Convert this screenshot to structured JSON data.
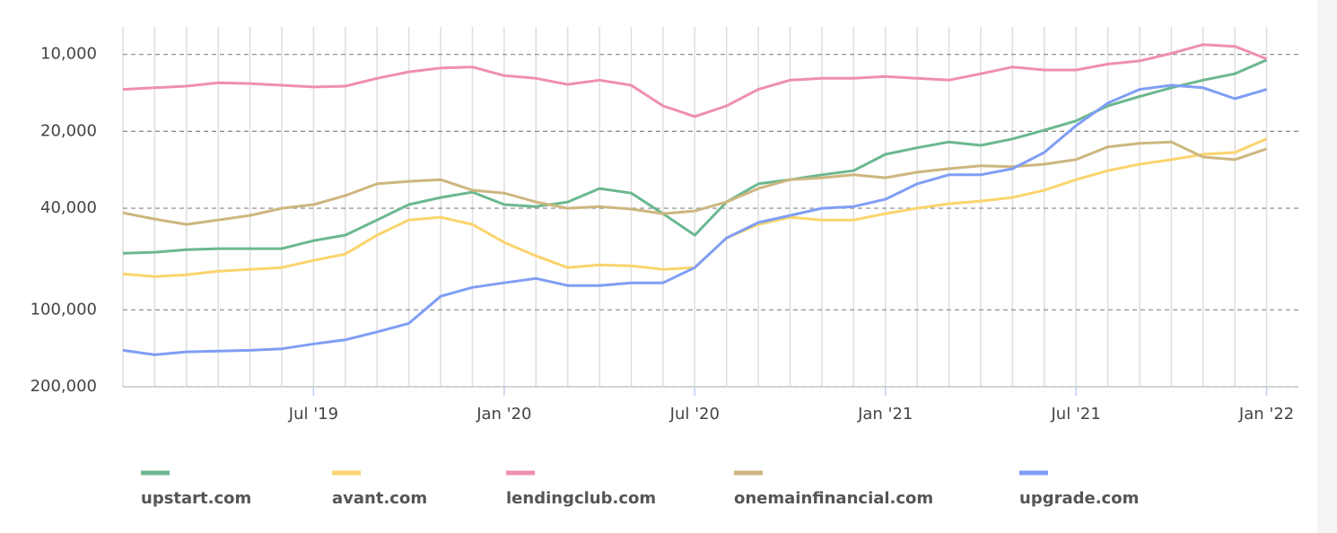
{
  "chart_data": {
    "type": "line",
    "x": [
      "2019-01",
      "2019-02",
      "2019-03",
      "2019-04",
      "2019-05",
      "2019-06",
      "2019-07",
      "2019-08",
      "2019-09",
      "2019-10",
      "2019-11",
      "2019-12",
      "2020-01",
      "2020-02",
      "2020-03",
      "2020-04",
      "2020-05",
      "2020-06",
      "2020-07",
      "2020-08",
      "2020-09",
      "2020-10",
      "2020-11",
      "2020-12",
      "2021-01",
      "2021-02",
      "2021-03",
      "2021-04",
      "2021-05",
      "2021-06",
      "2021-07",
      "2021-08",
      "2021-09",
      "2021-10",
      "2021-11",
      "2021-12",
      "2022-01"
    ],
    "series": [
      {
        "name": "upstart.com",
        "color": "#6bb88f",
        "values": [
          60000,
          59500,
          58100,
          57600,
          57600,
          57600,
          53600,
          51000,
          44500,
          38700,
          36300,
          34600,
          38700,
          39400,
          37800,
          33500,
          34900,
          42000,
          51000,
          37800,
          32100,
          30900,
          29600,
          28500,
          24600,
          23200,
          22000,
          22700,
          21400,
          19800,
          18200,
          15900,
          14600,
          13500,
          12600,
          11900,
          10500
        ]
      },
      {
        "name": "avant.com",
        "color": "#fbd46d",
        "values": [
          72300,
          74100,
          72900,
          70600,
          69400,
          68300,
          64000,
          60500,
          51000,
          44500,
          43400,
          46300,
          54400,
          61500,
          68300,
          66700,
          67200,
          69400,
          68300,
          52300,
          46300,
          43400,
          44500,
          44500,
          42000,
          40000,
          38400,
          37500,
          36300,
          34000,
          30900,
          28500,
          26900,
          25800,
          24600,
          24200,
          21400
        ]
      },
      {
        "name": "lendingclub.com",
        "color": "#ef8fb0",
        "values": [
          13700,
          13500,
          13300,
          12900,
          13000,
          13200,
          13400,
          13300,
          12400,
          11700,
          11300,
          11200,
          12100,
          12400,
          13100,
          12600,
          13200,
          15900,
          17500,
          15900,
          13700,
          12600,
          12400,
          12400,
          12200,
          12400,
          12600,
          11900,
          11200,
          11500,
          11500,
          10900,
          10600,
          9900,
          9150,
          9300,
          10400
        ]
      },
      {
        "name": "onemainfinancial.com",
        "color": "#cdb67f",
        "values": [
          41700,
          44100,
          46300,
          44500,
          42700,
          40000,
          38700,
          35700,
          32100,
          31400,
          30900,
          34000,
          34900,
          37800,
          40000,
          39400,
          40300,
          42000,
          41000,
          37800,
          33500,
          30900,
          30400,
          29600,
          30400,
          28900,
          28000,
          27300,
          27500,
          26900,
          25800,
          23000,
          22300,
          22000,
          25200,
          25800,
          23400
        ]
      },
      {
        "name": "upgrade.com",
        "color": "#7f9ef5",
        "values": [
          144000,
          150000,
          146000,
          145000,
          144000,
          142000,
          136000,
          131000,
          122000,
          113000,
          88500,
          81700,
          78400,
          75300,
          80300,
          80300,
          78400,
          78400,
          68300,
          52300,
          45500,
          42700,
          40000,
          39400,
          36900,
          32100,
          29600,
          29600,
          28000,
          24200,
          19000,
          15500,
          13700,
          13200,
          13500,
          14900,
          13700
        ]
      }
    ],
    "xlim": [
      "2019-01",
      "2022-02"
    ],
    "xticks": [
      {
        "value": "2019-07",
        "label": "Jul '19"
      },
      {
        "value": "2020-01",
        "label": "Jan '20"
      },
      {
        "value": "2020-07",
        "label": "Jul '20"
      },
      {
        "value": "2021-01",
        "label": "Jan '21"
      },
      {
        "value": "2021-07",
        "label": "Jul '21"
      },
      {
        "value": "2022-01",
        "label": "Jan '22"
      }
    ],
    "ylim": [
      200000,
      7800
    ],
    "yscale": "log",
    "yticks": [
      {
        "value": 10000,
        "label": "10,000"
      },
      {
        "value": 20000,
        "label": "20,000"
      },
      {
        "value": 40000,
        "label": "40,000"
      },
      {
        "value": 100000,
        "label": "100,000"
      },
      {
        "value": 200000,
        "label": "200,000"
      }
    ],
    "grid": true,
    "legend": "bottom"
  }
}
